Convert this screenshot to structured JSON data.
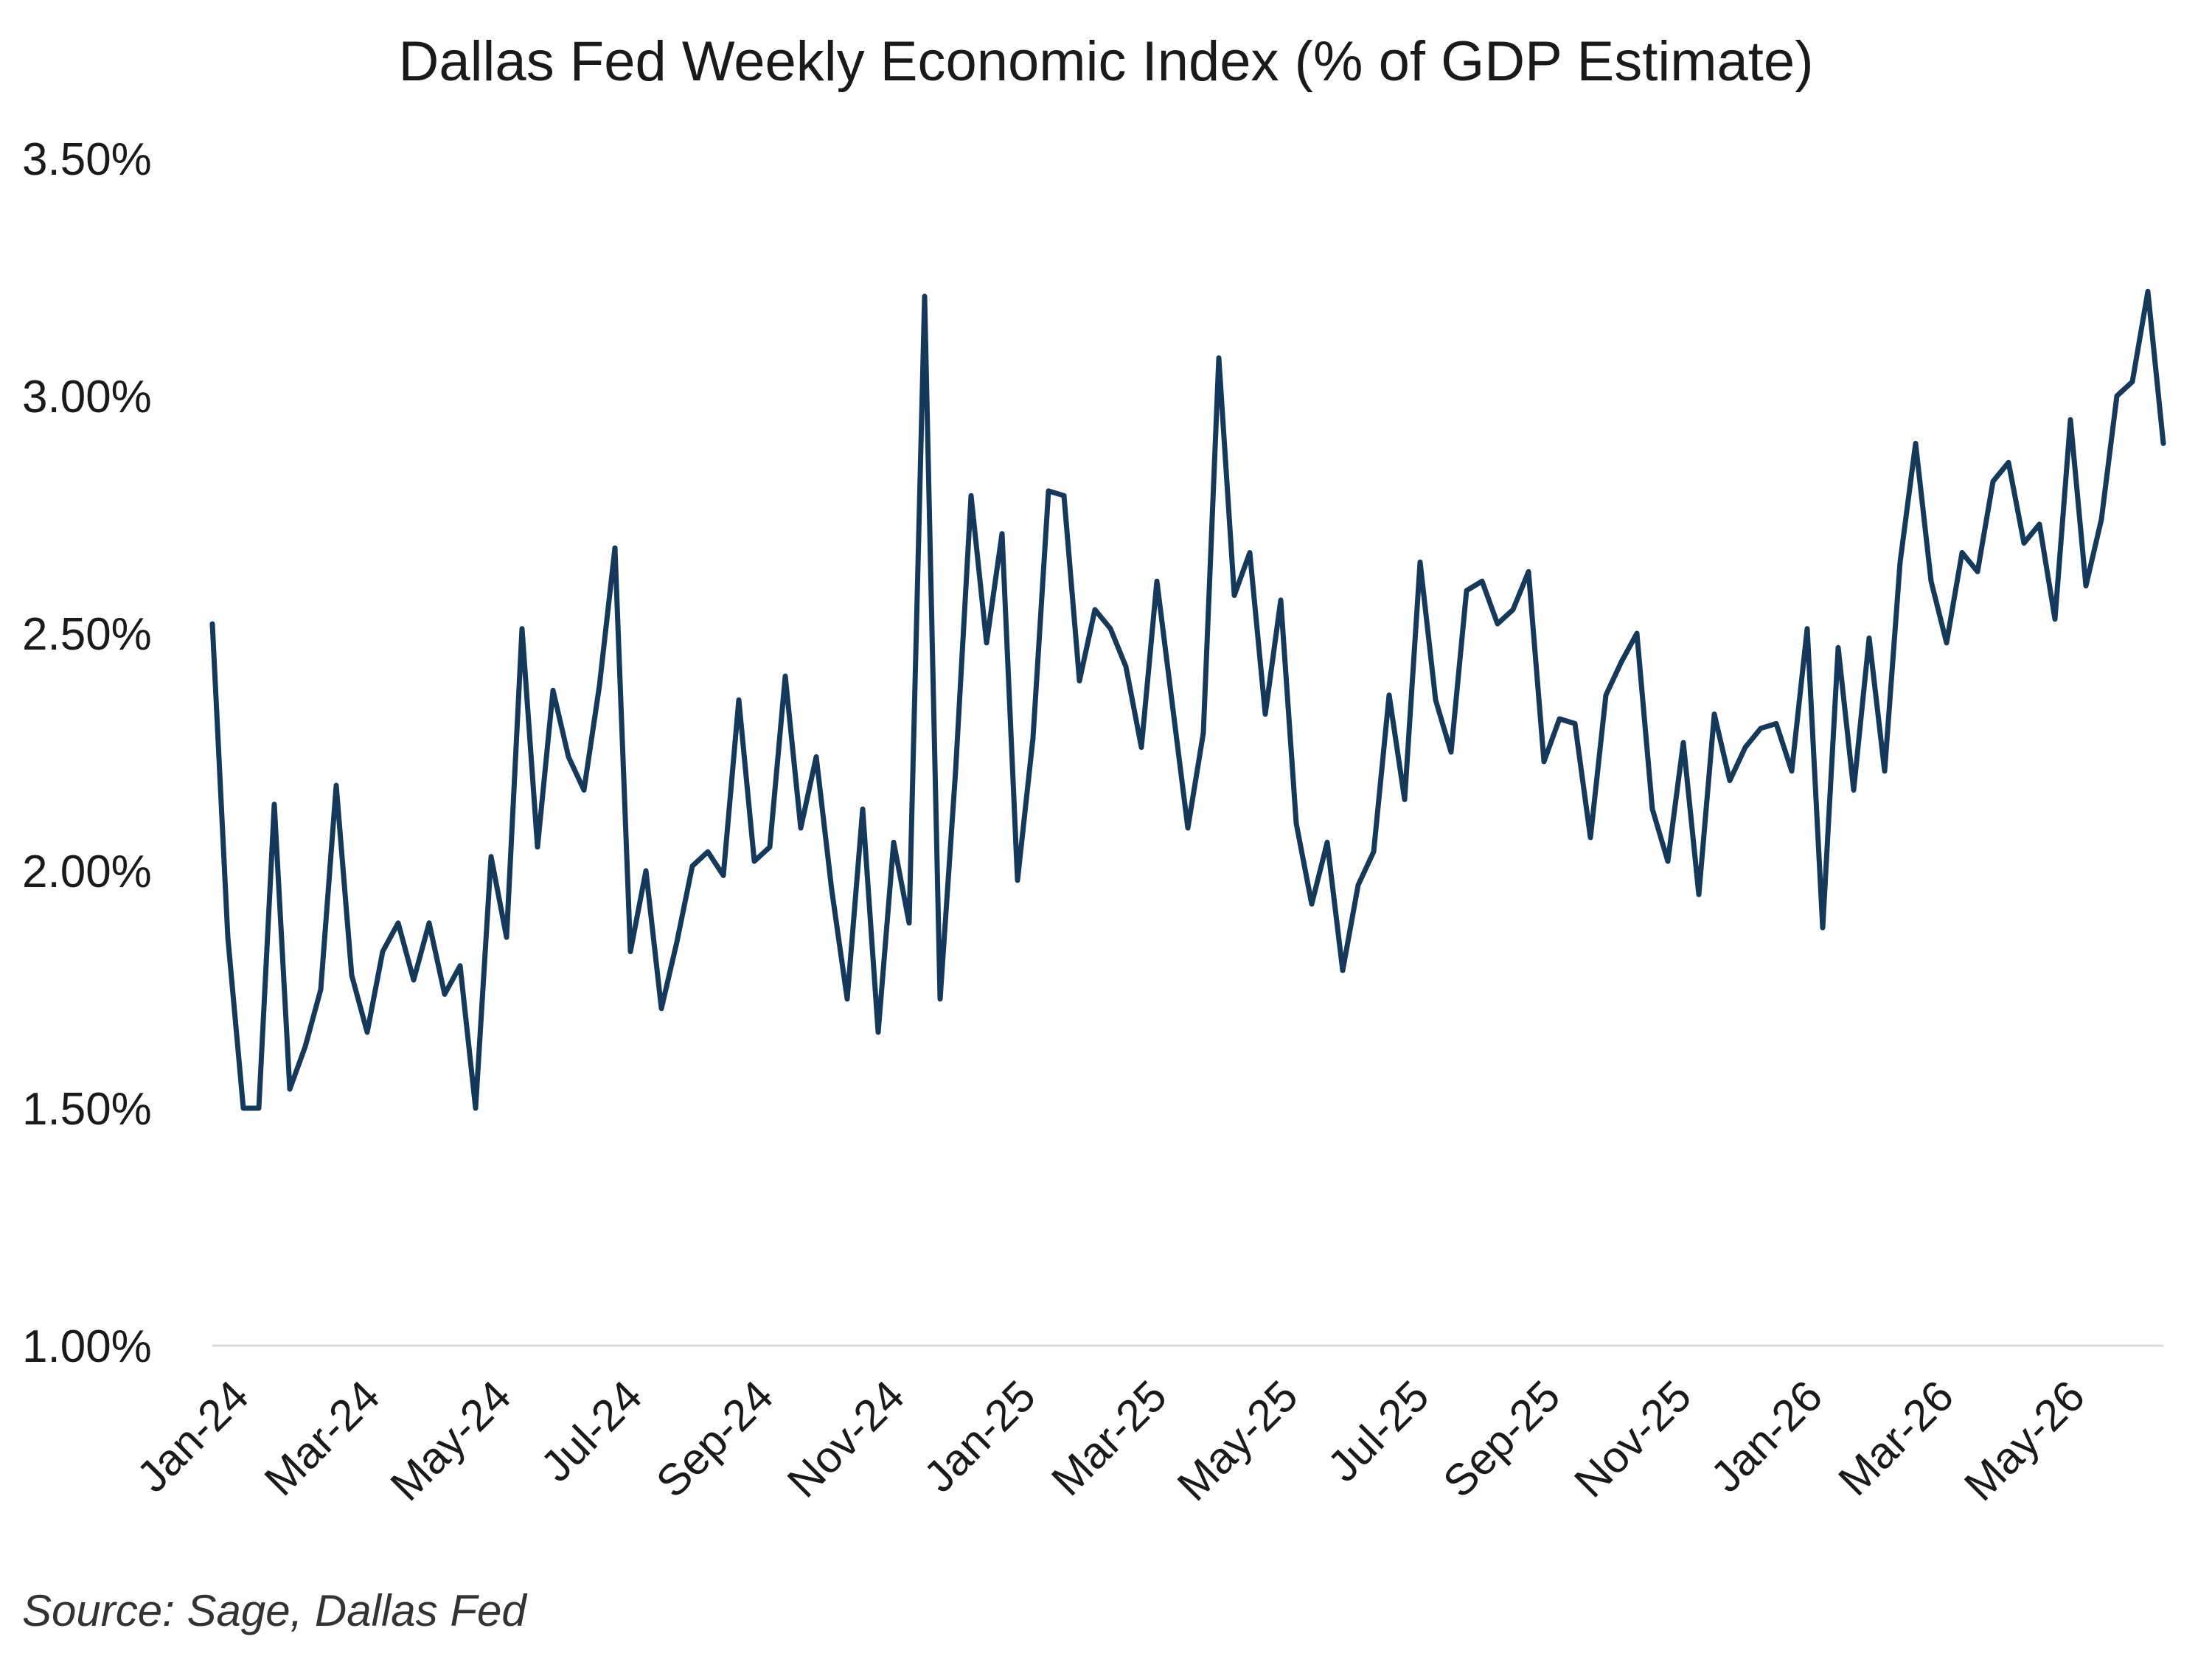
{
  "title": "Dallas Fed Weekly Economic Index (% of GDP Estimate)",
  "source_note": "Source: Sage, Dallas Fed",
  "colors": {
    "line": "#14395B",
    "axis": "#d9d9d9",
    "text": "#1a1a1a"
  },
  "chart_data": {
    "type": "line",
    "title": "Dallas Fed Weekly Economic Index (% of GDP Estimate)",
    "xlabel": "",
    "ylabel": "",
    "ylim": [
      1.0,
      3.5
    ],
    "yticks": [
      1.0,
      1.5,
      2.0,
      2.5,
      3.0,
      3.5
    ],
    "ytick_labels": [
      "1.00%",
      "1.50%",
      "2.00%",
      "2.50%",
      "3.00%",
      "3.50%"
    ],
    "xtick_labels": [
      "Jan-24",
      "Mar-24",
      "May-24",
      "Jul-24",
      "Sep-24",
      "Nov-24",
      "Jan-25",
      "Mar-25",
      "May-25",
      "Jul-25",
      "Sep-25",
      "Nov-25",
      "Jan-26",
      "Mar-26",
      "May-26"
    ],
    "grid": false,
    "legend": "none",
    "series": [
      {
        "values": [
          2.52,
          1.86,
          1.5,
          1.5,
          2.14,
          1.54,
          1.63,
          1.75,
          2.18,
          1.78,
          1.66,
          1.83,
          1.89,
          1.77,
          1.89,
          1.74,
          1.8,
          1.5,
          2.03,
          1.86,
          2.51,
          2.05,
          2.38,
          2.24,
          2.17,
          2.39,
          2.68,
          1.83,
          2.0,
          1.71,
          1.85,
          2.01,
          2.04,
          1.99,
          2.36,
          2.02,
          2.05,
          2.41,
          2.09,
          2.24,
          1.96,
          1.73,
          2.13,
          1.66,
          2.06,
          1.89,
          3.21,
          1.73,
          2.21,
          2.79,
          2.48,
          2.71,
          1.98,
          2.28,
          2.8,
          2.79,
          2.4,
          2.55,
          2.51,
          2.43,
          2.26,
          2.61,
          2.35,
          2.09,
          2.29,
          3.08,
          2.58,
          2.67,
          2.33,
          2.57,
          2.1,
          1.93,
          2.06,
          1.79,
          1.97,
          2.04,
          2.37,
          2.15,
          2.65,
          2.36,
          2.25,
          2.59,
          2.61,
          2.52,
          2.55,
          2.63,
          2.23,
          2.32,
          2.31,
          2.07,
          2.37,
          2.44,
          2.5,
          2.13,
          2.02,
          2.27,
          1.95,
          2.33,
          2.19,
          2.26,
          2.3,
          2.31,
          2.21,
          2.51,
          1.88,
          2.47,
          2.17,
          2.49,
          2.21,
          2.65,
          2.9,
          2.61,
          2.48,
          2.67,
          2.63,
          2.82,
          2.86,
          2.69,
          2.73,
          2.53,
          2.95,
          2.6,
          2.74,
          3.0,
          3.03,
          3.22,
          2.9
        ]
      }
    ]
  }
}
